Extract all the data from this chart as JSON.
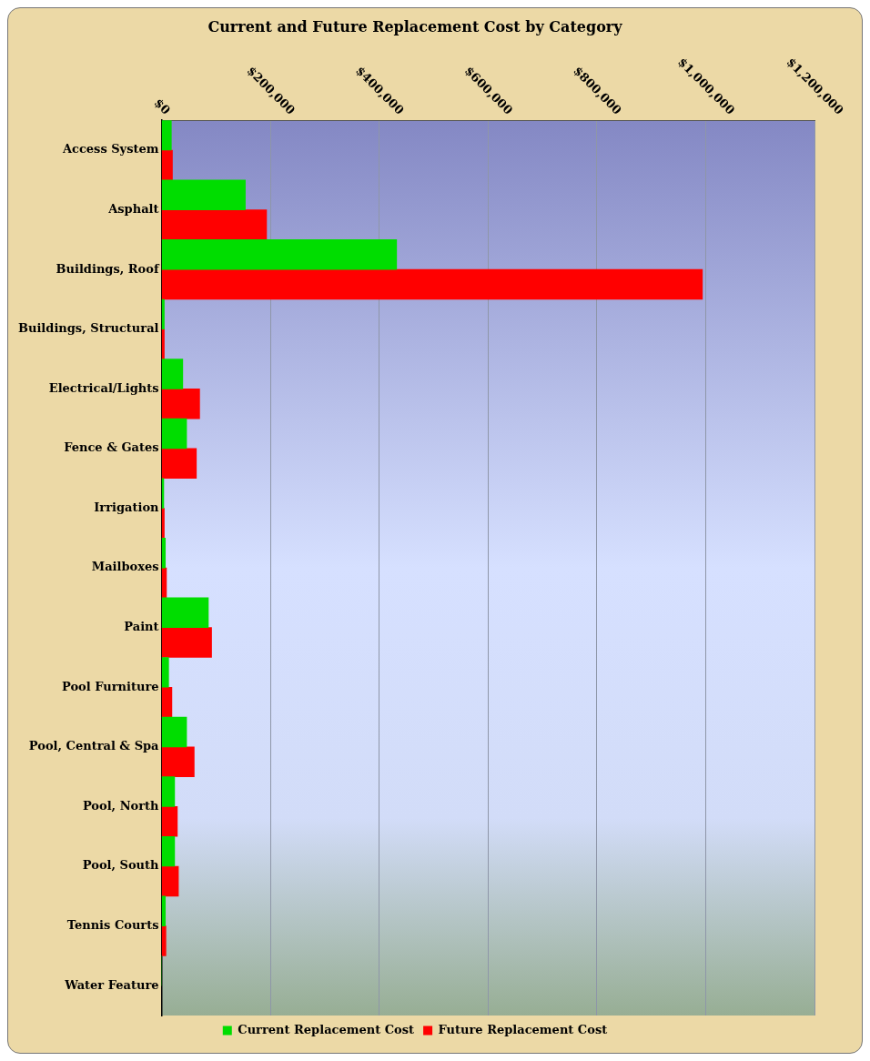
{
  "chart_data": {
    "type": "bar",
    "orientation": "horizontal",
    "title": "Current and Future Replacement Cost by Category",
    "categories": [
      "Access System",
      "Asphalt",
      "Buildings, Roof",
      "Buildings, Structural",
      "Electrical/Lights",
      "Fence & Gates",
      "Irrigation",
      "Mailboxes",
      "Paint",
      "Pool Furniture",
      "Pool, Central & Spa",
      "Pool, North",
      "Pool, South",
      "Tennis Courts",
      "Water Feature"
    ],
    "series": [
      {
        "name": "Current Replacement Cost",
        "color": "#00dd00",
        "values": [
          18000,
          154000,
          432000,
          5000,
          39000,
          46000,
          4000,
          7000,
          86000,
          13000,
          46000,
          24000,
          24000,
          7000,
          0
        ]
      },
      {
        "name": "Future Replacement Cost",
        "color": "#ff0000",
        "values": [
          20000,
          193000,
          994000,
          5000,
          70000,
          64000,
          5000,
          9000,
          92000,
          19000,
          60000,
          29000,
          31000,
          8000,
          null
        ]
      }
    ],
    "xlim": [
      0,
      1200000
    ],
    "xticks": [
      {
        "value": 0,
        "label": "$0"
      },
      {
        "value": 200000,
        "label": "$200,000"
      },
      {
        "value": 400000,
        "label": "$400,000"
      },
      {
        "value": 600000,
        "label": "$600,000"
      },
      {
        "value": 800000,
        "label": "$800,000"
      },
      {
        "value": 1000000,
        "label": "$1,000,000"
      },
      {
        "value": 1200000,
        "label": "$1,200,000"
      }
    ],
    "grid": "x",
    "legend": "bottom"
  }
}
